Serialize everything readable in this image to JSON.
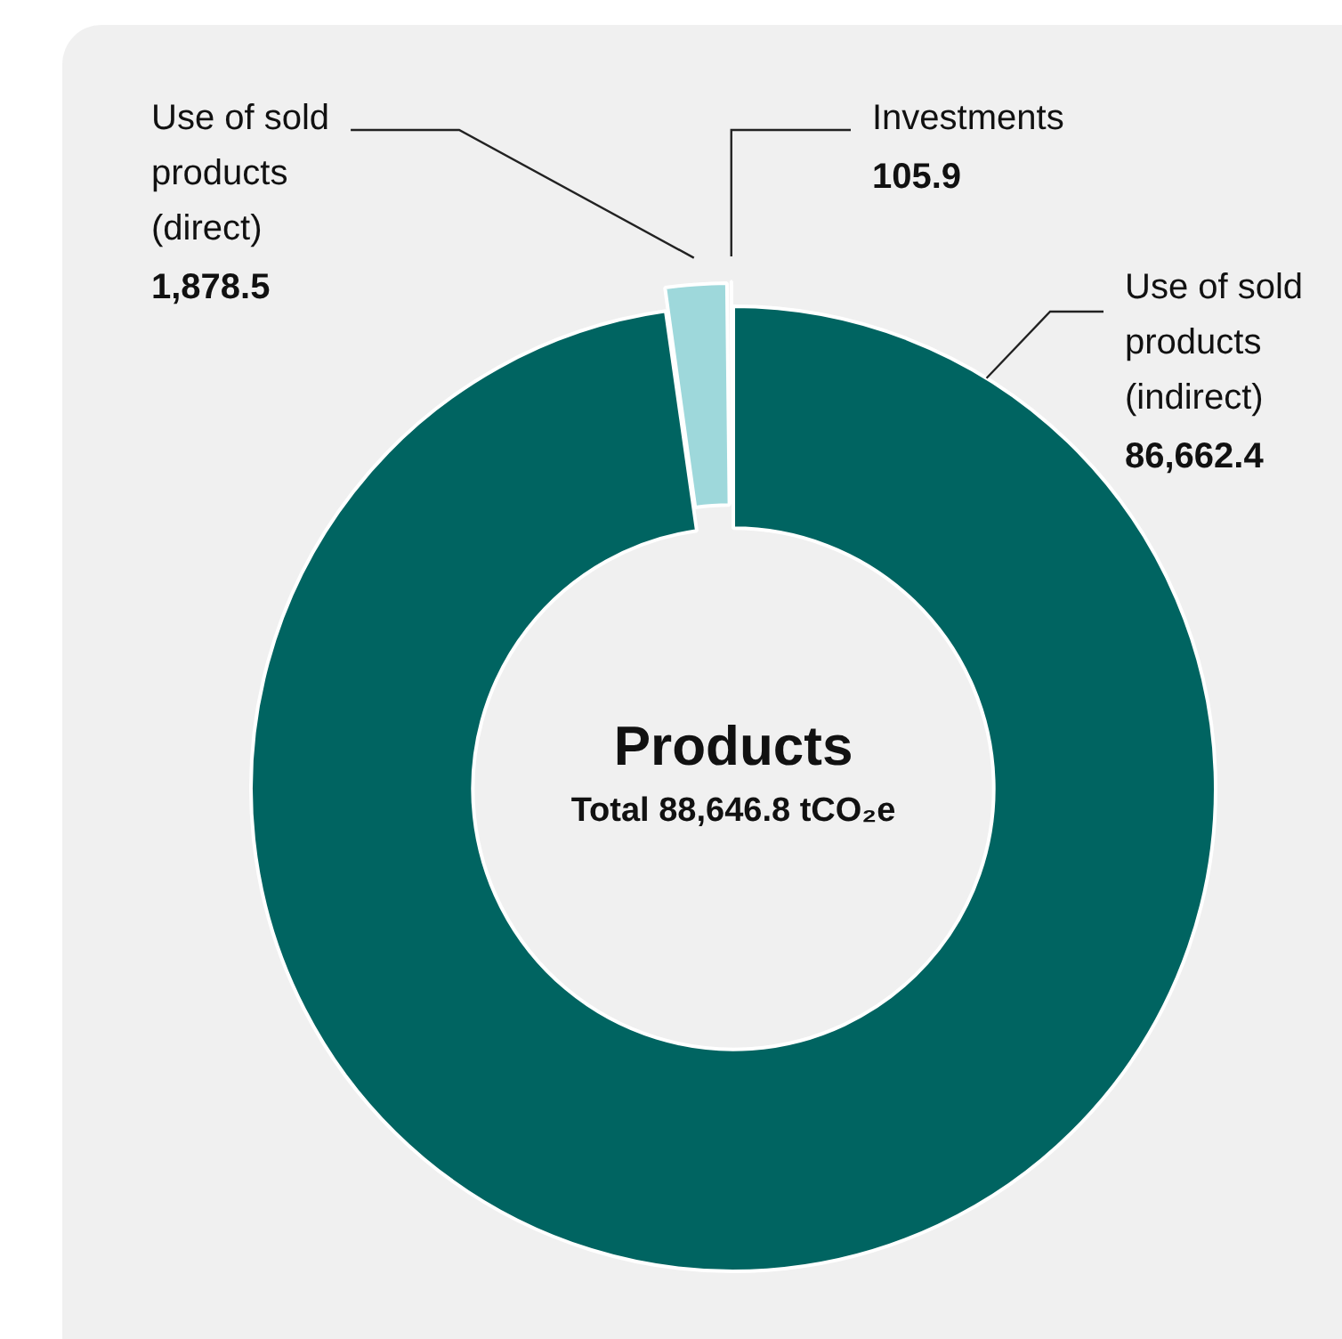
{
  "chart_data": {
    "type": "donut",
    "title": "Products",
    "subtitle": "Total 88,646.8 tCO₂e",
    "categories": [
      "Use of sold products (indirect)",
      "Use of sold products (direct)",
      "Investments"
    ],
    "values": [
      86662.4,
      1878.5,
      105.9
    ],
    "colors": [
      "#006461",
      "#9ed8db",
      "#ffffff"
    ],
    "value_labels": [
      "86,662.4",
      "1,878.5",
      "105.9"
    ]
  }
}
